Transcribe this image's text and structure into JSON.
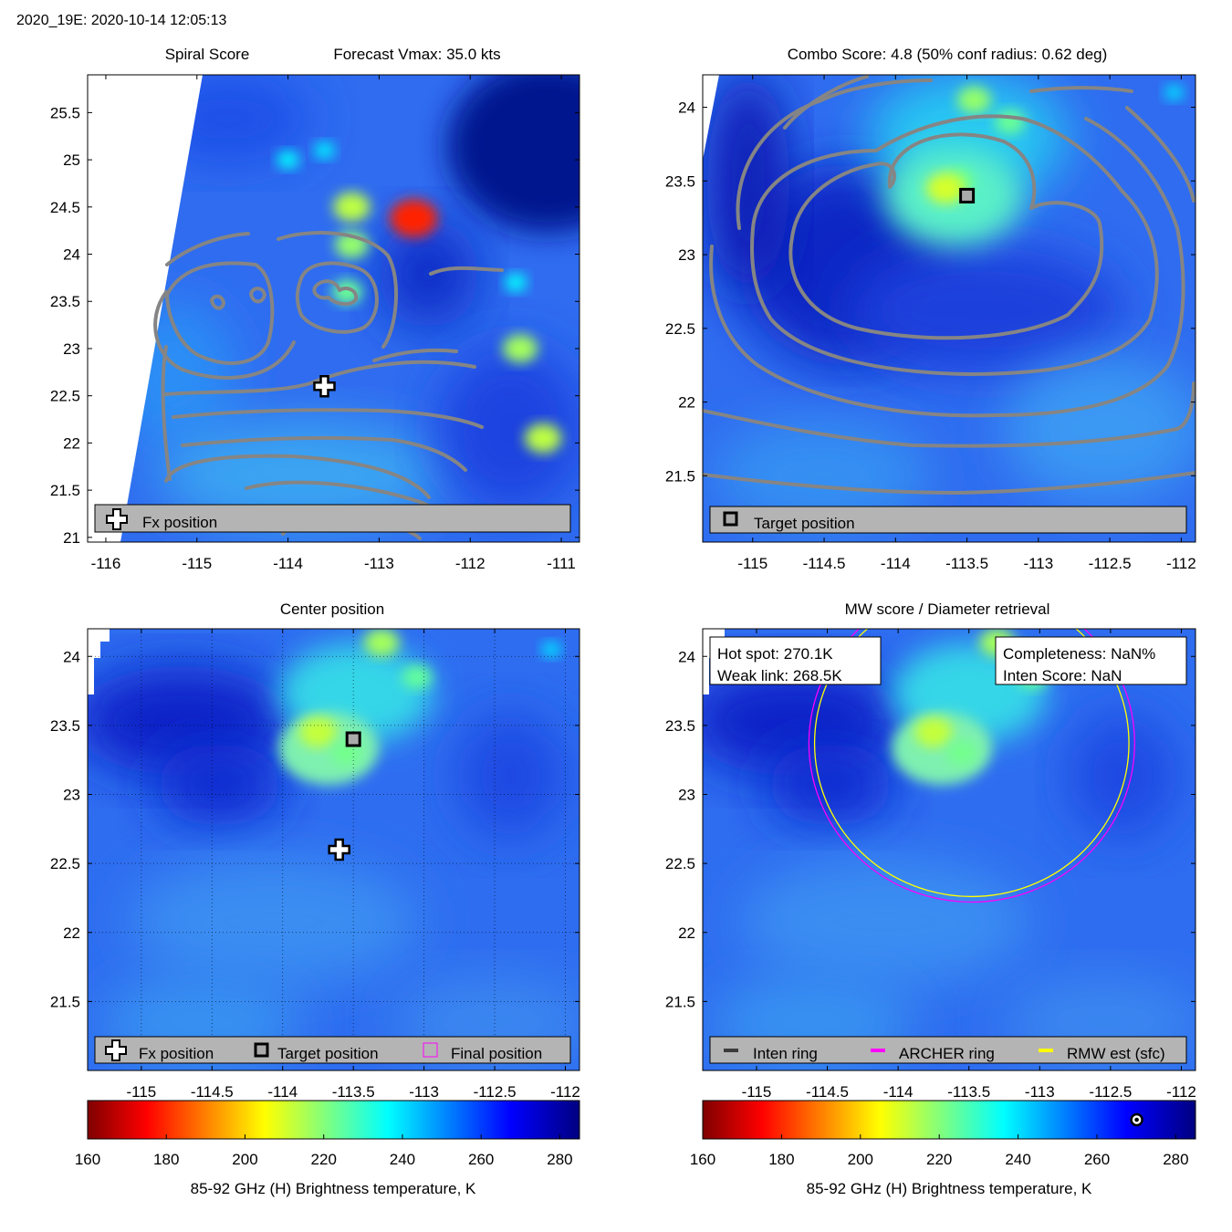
{
  "figure_title": "2020_19E: 2020-10-14 12:05:13",
  "colors": {
    "panel_bg": "#2f6cf0",
    "contour": "#858585",
    "legend_bg": "#b4b4b4",
    "archer_ring": "#ff00ff",
    "rmw_ring": "#ffff00",
    "inten_ring": "#3c3c3c"
  },
  "chart_data": [
    {
      "type": "heatmap",
      "panel": "spiral",
      "title_left": "Spiral Score",
      "title_right": "Forecast Vmax: 35.0 kts",
      "xlim": [
        -116.2,
        -110.8
      ],
      "ylim": [
        20.95,
        25.9
      ],
      "xticks": [
        -116,
        -115,
        -114,
        -113,
        -112,
        -111
      ],
      "xtick_labels": [
        "-116",
        "-115",
        "-114",
        "-113",
        "-112",
        "-111"
      ],
      "yticks": [
        21,
        21.5,
        22,
        22.5,
        23,
        23.5,
        24,
        24.5,
        25,
        25.5
      ],
      "ytick_labels": [
        "21",
        "21.5",
        "22",
        "22.5",
        "23",
        "23.5",
        "24",
        "24.5",
        "25",
        "25.5"
      ],
      "legend": [
        "Fx position"
      ],
      "markers": [
        {
          "name": "fx-position",
          "lon": -113.6,
          "lat": 22.6
        }
      ],
      "features": [
        {
          "lon": -113.35,
          "lat": 23.6,
          "tb": 225
        },
        {
          "lon": -113.3,
          "lat": 24.5,
          "tb": 215
        },
        {
          "lon": -113.3,
          "lat": 24.1,
          "tb": 220
        },
        {
          "lon": -112.62,
          "lat": 24.38,
          "tb": 180
        },
        {
          "lon": -114.0,
          "lat": 25.0,
          "tb": 238
        },
        {
          "lon": -113.6,
          "lat": 25.1,
          "tb": 240
        },
        {
          "lon": -111.45,
          "lat": 23.0,
          "tb": 218
        },
        {
          "lon": -111.2,
          "lat": 22.05,
          "tb": 215
        },
        {
          "lon": -111.5,
          "lat": 23.7,
          "tb": 238
        }
      ]
    },
    {
      "type": "heatmap",
      "panel": "combo",
      "title": "Combo Score: 4.8  (50% conf radius: 0.62 deg)",
      "xlim": [
        -115.35,
        -111.9
      ],
      "ylim": [
        21.05,
        24.22
      ],
      "xticks": [
        -115,
        -114.5,
        -114,
        -113.5,
        -113,
        -112.5,
        -112
      ],
      "xtick_labels": [
        "-115",
        "-114.5",
        "-114",
        "-113.5",
        "-113",
        "-112.5",
        "-112"
      ],
      "yticks": [
        21.5,
        22,
        22.5,
        23,
        23.5,
        24
      ],
      "ytick_labels": [
        "21.5",
        "22",
        "22.5",
        "23",
        "23.5",
        "24"
      ],
      "legend": [
        "Target position"
      ],
      "markers": [
        {
          "name": "target-position",
          "lon": -113.5,
          "lat": 23.4
        }
      ],
      "features": [
        {
          "lon": -113.55,
          "lat": 23.5,
          "tb": 225
        },
        {
          "lon": -113.65,
          "lat": 23.45,
          "tb": 212
        },
        {
          "lon": -113.45,
          "lat": 24.05,
          "tb": 220
        },
        {
          "lon": -113.2,
          "lat": 23.9,
          "tb": 225
        },
        {
          "lon": -112.05,
          "lat": 24.1,
          "tb": 242
        }
      ]
    },
    {
      "type": "heatmap",
      "panel": "center",
      "title": "Center position",
      "xlim": [
        -115.38,
        -111.9
      ],
      "ylim": [
        21.0,
        24.2
      ],
      "xticks": [
        -115,
        -114.5,
        -114,
        -113.5,
        -113,
        -112.5,
        -112
      ],
      "xtick_labels": [
        "-115",
        "-114.5",
        "-114",
        "-113.5",
        "-113",
        "-112.5",
        "-112"
      ],
      "yticks": [
        21.5,
        22,
        22.5,
        23,
        23.5,
        24
      ],
      "ytick_labels": [
        "21.5",
        "22",
        "22.5",
        "23",
        "23.5",
        "24"
      ],
      "legend": [
        "Fx position",
        "Target position",
        "Final position"
      ],
      "markers": [
        {
          "name": "fx-position",
          "lon": -113.6,
          "lat": 22.6
        },
        {
          "name": "target-position",
          "lon": -113.5,
          "lat": 23.4
        }
      ],
      "features": [
        {
          "lon": -113.75,
          "lat": 23.45,
          "tb": 214
        },
        {
          "lon": -113.55,
          "lat": 23.3,
          "tb": 224
        },
        {
          "lon": -113.3,
          "lat": 24.1,
          "tb": 218
        },
        {
          "lon": -113.05,
          "lat": 23.85,
          "tb": 226
        },
        {
          "lon": -112.1,
          "lat": 24.05,
          "tb": 242
        }
      ]
    },
    {
      "type": "heatmap",
      "panel": "mw",
      "title": "MW score / Diameter retrieval",
      "xlim": [
        -115.38,
        -111.9
      ],
      "ylim": [
        21.0,
        24.2
      ],
      "xticks": [
        -115,
        -114.5,
        -114,
        -113.5,
        -113,
        -112.5,
        -112
      ],
      "xtick_labels": [
        "-115",
        "-114.5",
        "-114",
        "-113.5",
        "-113",
        "-112.5",
        "-112"
      ],
      "yticks": [
        21.5,
        22,
        22.5,
        23,
        23.5,
        24
      ],
      "ytick_labels": [
        "21.5",
        "22",
        "22.5",
        "23",
        "23.5",
        "24"
      ],
      "legend": [
        "Inten ring",
        "ARCHER ring",
        "RMW est (sfc)"
      ],
      "info_left": [
        "Hot spot: 270.1K",
        "Weak link: 268.5K"
      ],
      "info_right": [
        "Completeness: NaN%",
        "Inten Score: NaN"
      ],
      "rings": [
        {
          "name": "archer-ring",
          "lon": -113.48,
          "lat": 23.37,
          "radius_deg": 1.15
        },
        {
          "name": "rmw-ring",
          "lon": -113.48,
          "lat": 23.37,
          "radius_deg": 1.11
        }
      ],
      "features": [
        {
          "lon": -113.75,
          "lat": 23.45,
          "tb": 214
        },
        {
          "lon": -113.55,
          "lat": 23.3,
          "tb": 224
        },
        {
          "lon": -113.3,
          "lat": 24.1,
          "tb": 218
        },
        {
          "lon": -113.05,
          "lat": 23.85,
          "tb": 226
        }
      ]
    },
    {
      "type": "colorbar",
      "label": "85-92 GHz (H) Brightness temperature, K",
      "range": [
        160,
        285
      ],
      "ticks": [
        160,
        180,
        200,
        220,
        240,
        260,
        280
      ],
      "tick_labels": [
        "160",
        "180",
        "200",
        "220",
        "240",
        "260",
        "280"
      ],
      "hot_spot_marker": 270.1
    }
  ]
}
